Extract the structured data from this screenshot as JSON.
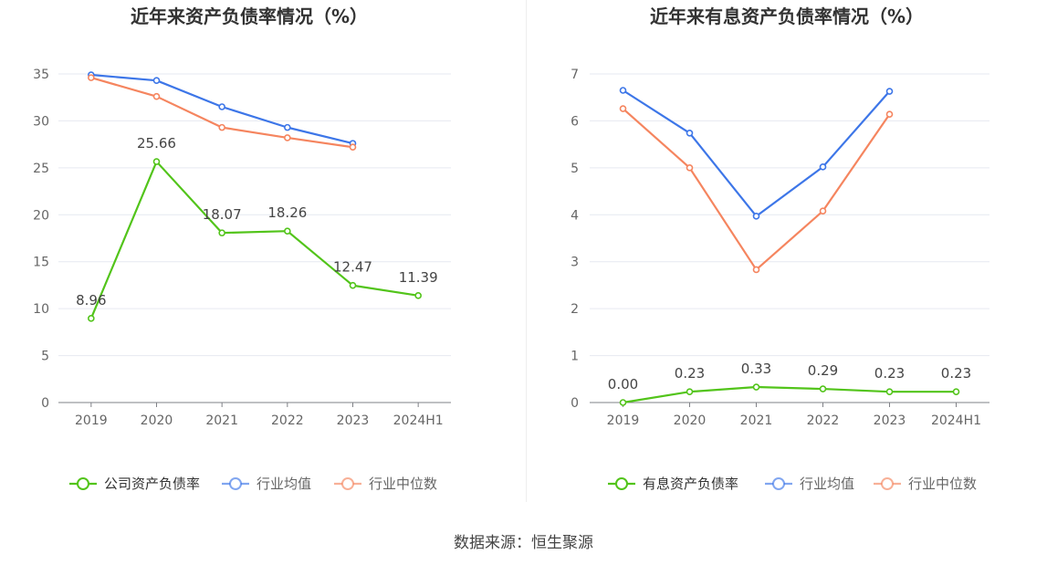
{
  "footer": {
    "source_text": "数据来源：恒生聚源"
  },
  "chart_data": [
    {
      "type": "line",
      "title": "近年来资产负债率情况（%）",
      "categories": [
        "2019",
        "2020",
        "2021",
        "2022",
        "2023",
        "2024H1"
      ],
      "ylim": [
        0,
        35
      ],
      "yticks": [
        0,
        5,
        10,
        15,
        20,
        25,
        30,
        35
      ],
      "grid": true,
      "legend_position": "bottom",
      "series": [
        {
          "name": "公司资产负债率",
          "color": "#52c41a",
          "values": [
            8.96,
            25.66,
            18.07,
            18.26,
            12.47,
            11.39
          ],
          "labels": [
            "8.96",
            "25.66",
            "18.07",
            "18.26",
            "12.47",
            "11.39"
          ],
          "show_labels": true
        },
        {
          "name": "行业均值",
          "color": "#3d76e8",
          "values": [
            34.9,
            34.3,
            31.5,
            29.3,
            27.6,
            null
          ],
          "show_labels": false
        },
        {
          "name": "行业中位数",
          "color": "#f5855f",
          "values": [
            34.6,
            32.6,
            29.3,
            28.2,
            27.2,
            null
          ],
          "show_labels": false
        }
      ]
    },
    {
      "type": "line",
      "title": "近年来有息资产负债率情况（%）",
      "categories": [
        "2019",
        "2020",
        "2021",
        "2022",
        "2023",
        "2024H1"
      ],
      "ylim": [
        0,
        7
      ],
      "yticks": [
        0,
        1,
        2,
        3,
        4,
        5,
        6,
        7
      ],
      "grid": true,
      "legend_position": "bottom",
      "series": [
        {
          "name": "有息资产负债率",
          "color": "#52c41a",
          "values": [
            0.0,
            0.23,
            0.33,
            0.29,
            0.23,
            0.23
          ],
          "labels": [
            "0.00",
            "0.23",
            "0.33",
            "0.29",
            "0.23",
            "0.23"
          ],
          "show_labels": true
        },
        {
          "name": "行业均值",
          "color": "#3d76e8",
          "values": [
            6.65,
            5.74,
            3.97,
            5.02,
            6.63,
            null
          ],
          "show_labels": false
        },
        {
          "name": "行业中位数",
          "color": "#f5855f",
          "values": [
            6.26,
            5.0,
            2.83,
            4.08,
            6.14,
            null
          ],
          "show_labels": false
        }
      ]
    }
  ]
}
